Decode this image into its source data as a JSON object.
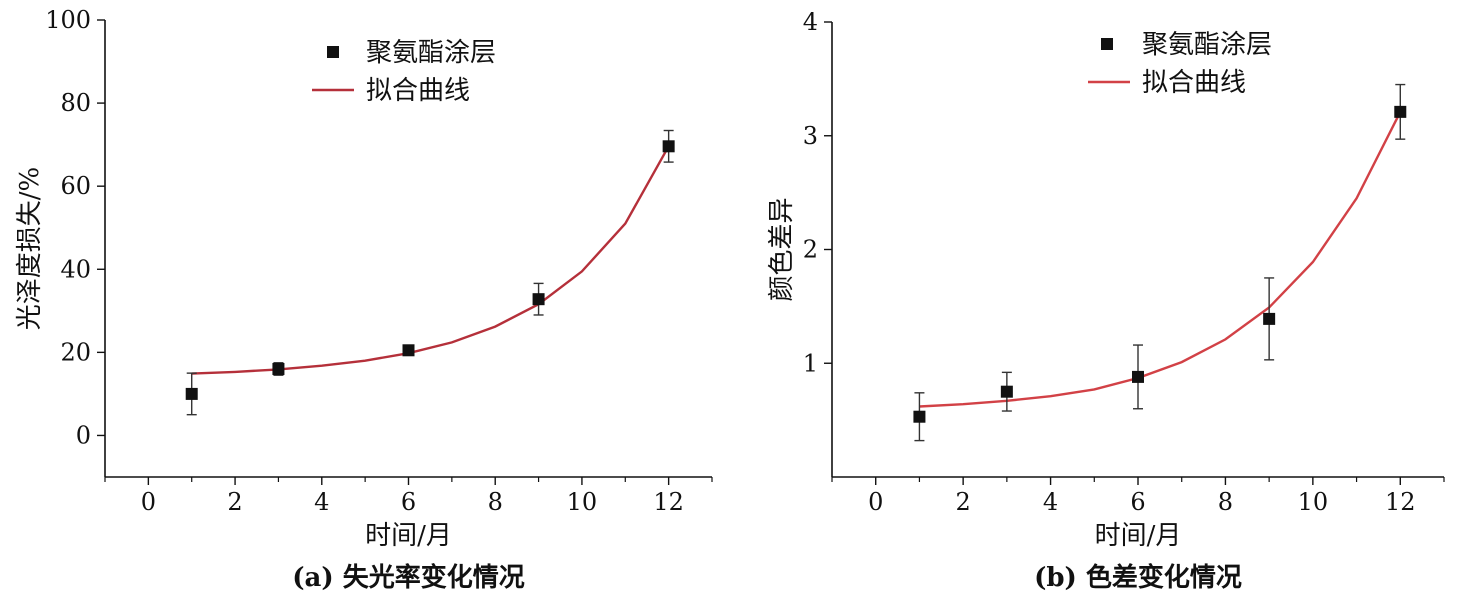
{
  "chart_data": [
    {
      "type": "scatter",
      "caption": "(a) 失光率变化情况",
      "xlabel": "时间/月",
      "ylabel": "光泽度损失/%",
      "xlim": [
        -1,
        13
      ],
      "ylim": [
        -10,
        100
      ],
      "xticks": [
        0,
        2,
        4,
        6,
        8,
        10,
        12
      ],
      "yticks": [
        0,
        20,
        40,
        60,
        80,
        100
      ],
      "legend": {
        "position": "top-center",
        "entries": [
          "聚氨酯涂层",
          "拟合曲线"
        ]
      },
      "colors": {
        "points": "#111111",
        "fit": "#b5303a"
      },
      "series": [
        {
          "name": "聚氨酯涂层",
          "kind": "points",
          "x": [
            1,
            3,
            6,
            9,
            12
          ],
          "y": [
            10,
            16,
            20.5,
            32.8,
            69.6
          ],
          "yerr": [
            5,
            1.5,
            1.2,
            3.8,
            3.8
          ]
        },
        {
          "name": "拟合曲线",
          "kind": "curve",
          "x": [
            1,
            2,
            3,
            4,
            5,
            6,
            7,
            8,
            9,
            10,
            11,
            12
          ],
          "y": [
            14.9,
            15.3,
            15.9,
            16.8,
            18.0,
            19.8,
            22.4,
            26.2,
            31.6,
            39.5,
            51.0,
            69.6
          ]
        }
      ]
    },
    {
      "type": "scatter",
      "caption": "(b) 色差变化情况",
      "xlabel": "时间/月",
      "ylabel": "颜色差异",
      "xlim": [
        -1,
        13
      ],
      "ylim": [
        0,
        4
      ],
      "xticks": [
        0,
        2,
        4,
        6,
        8,
        10,
        12
      ],
      "yticks": [
        1,
        2,
        3,
        4
      ],
      "legend": {
        "position": "top-center",
        "entries": [
          "聚氨酯涂层",
          "拟合曲线"
        ]
      },
      "colors": {
        "points": "#111111",
        "fit": "#d24146"
      },
      "series": [
        {
          "name": "聚氨酯涂层",
          "kind": "points",
          "x": [
            1,
            3,
            6,
            9,
            12
          ],
          "y": [
            0.53,
            0.75,
            0.88,
            1.39,
            3.21
          ],
          "yerr": [
            0.21,
            0.17,
            0.28,
            0.36,
            0.24
          ]
        },
        {
          "name": "拟合曲线",
          "kind": "curve",
          "x": [
            1,
            2,
            3,
            4,
            5,
            6,
            7,
            8,
            9,
            10,
            11,
            12
          ],
          "y": [
            0.62,
            0.64,
            0.67,
            0.71,
            0.77,
            0.87,
            1.01,
            1.21,
            1.49,
            1.89,
            2.45,
            3.21
          ]
        }
      ]
    }
  ]
}
